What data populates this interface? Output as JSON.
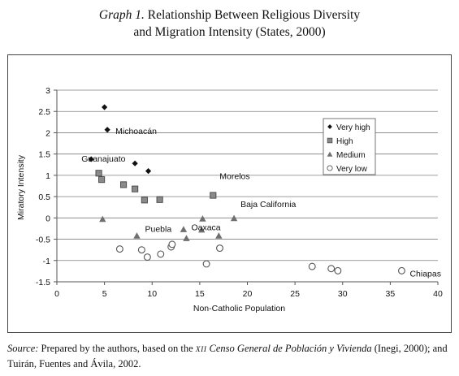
{
  "figure": {
    "label": "Graph 1.",
    "title_line1": "Relationship Between Religious Diversity",
    "title_line2": "and Migration Intensity (States, 2000)"
  },
  "source": {
    "label": "Source:",
    "text1": "Prepared by the authors, based on the",
    "roman": "XII",
    "census": "Censo General de Población y Vivienda",
    "text2": "(Inegi, 2000); and Tuirán, Fuentes and Ávila, 2002."
  },
  "chart_data": {
    "type": "scatter",
    "xlabel": "Non-Catholic Population",
    "ylabel": "Miratory Intensity",
    "xlim": [
      0,
      40
    ],
    "ylim": [
      -1.5,
      3
    ],
    "xticks": [
      0,
      5,
      10,
      15,
      20,
      25,
      30,
      35,
      40
    ],
    "yticks": [
      -1.5,
      -1,
      -0.5,
      0,
      0.5,
      1,
      1.5,
      2,
      2.5,
      3
    ],
    "grid": "horizontal",
    "legend_position": "right",
    "series": [
      {
        "name": "Very high",
        "marker": "diamond",
        "points": [
          [
            5.0,
            2.6
          ],
          [
            5.3,
            2.07
          ],
          [
            3.6,
            1.38
          ],
          [
            8.2,
            1.28
          ],
          [
            9.6,
            1.1
          ]
        ]
      },
      {
        "name": "High",
        "marker": "square",
        "points": [
          [
            4.4,
            1.05
          ],
          [
            4.7,
            0.9
          ],
          [
            7.0,
            0.78
          ],
          [
            8.2,
            0.68
          ],
          [
            9.2,
            0.42
          ],
          [
            10.8,
            0.43
          ],
          [
            16.4,
            0.53
          ]
        ]
      },
      {
        "name": "Medium",
        "marker": "triangle",
        "points": [
          [
            4.8,
            -0.03
          ],
          [
            8.4,
            -0.42
          ],
          [
            13.3,
            -0.27
          ],
          [
            13.6,
            -0.48
          ],
          [
            15.2,
            -0.28
          ],
          [
            15.3,
            -0.02
          ],
          [
            17.0,
            -0.42
          ],
          [
            18.6,
            -0.01
          ]
        ]
      },
      {
        "name": "Very low",
        "marker": "circle",
        "points": [
          [
            6.6,
            -0.73
          ],
          [
            8.9,
            -0.75
          ],
          [
            9.5,
            -0.92
          ],
          [
            10.9,
            -0.85
          ],
          [
            12.0,
            -0.68
          ],
          [
            12.1,
            -0.62
          ],
          [
            15.7,
            -1.08
          ],
          [
            17.1,
            -0.71
          ],
          [
            26.8,
            -1.14
          ],
          [
            28.8,
            -1.19
          ],
          [
            29.5,
            -1.24
          ],
          [
            36.2,
            -1.24
          ]
        ]
      }
    ],
    "annotations": [
      {
        "text": "Michoacán",
        "x": 5.3,
        "y": 2.07
      },
      {
        "text": "Guanajuato",
        "x": 3.6,
        "y": 1.38
      },
      {
        "text": "Morelos",
        "x": 16.4,
        "y": 0.53
      },
      {
        "text": "Baja California",
        "x": 18.6,
        "y": -0.01
      },
      {
        "text": "Puebla",
        "x": 8.4,
        "y": -0.42
      },
      {
        "text": "Oaxaca",
        "x": 13.6,
        "y": -0.48
      },
      {
        "text": "Chiapas",
        "x": 36.2,
        "y": -1.24
      }
    ]
  }
}
